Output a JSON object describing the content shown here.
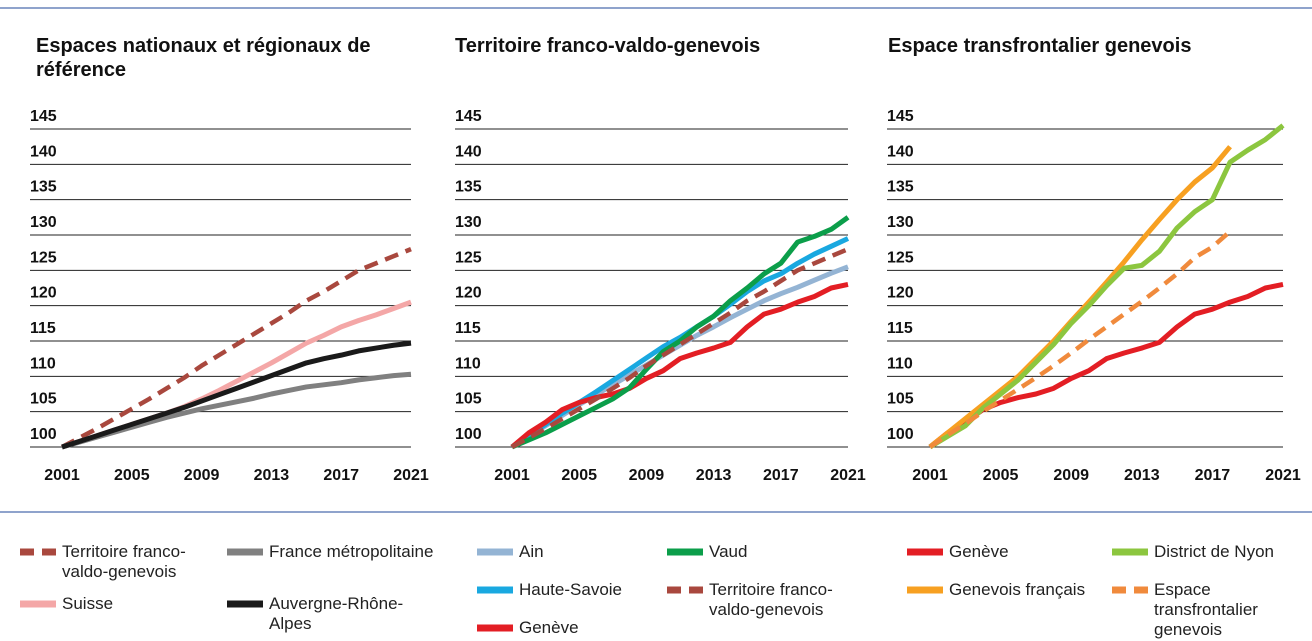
{
  "chart_data": [
    {
      "type": "line",
      "title": "Espaces nationaux et régionaux de référence",
      "x": [
        2001,
        2002,
        2003,
        2004,
        2005,
        2006,
        2007,
        2008,
        2009,
        2010,
        2011,
        2012,
        2013,
        2014,
        2015,
        2016,
        2017,
        2018,
        2019,
        2020,
        2021
      ],
      "xlim": [
        2001,
        2021
      ],
      "xticks": [
        2001,
        2005,
        2009,
        2013,
        2017,
        2021
      ],
      "ylim": [
        100,
        145
      ],
      "yticks": [
        100,
        105,
        110,
        115,
        120,
        125,
        130,
        135,
        140,
        145
      ],
      "grid": true,
      "series": [
        {
          "name": "Territoire franco-valdo-genevois",
          "color": "#a9483e",
          "dashed": true,
          "values": [
            100,
            101.3,
            102.6,
            104,
            105.4,
            106.8,
            108.3,
            109.8,
            111.5,
            113,
            114.5,
            116,
            117.5,
            119,
            120.7,
            122,
            123.5,
            125,
            126,
            127,
            128
          ]
        },
        {
          "name": "Suisse",
          "color": "#f4a7a7",
          "dashed": false,
          "values": [
            100,
            100.8,
            101.6,
            102.4,
            103.2,
            104,
            104.8,
            105.7,
            106.8,
            108,
            109.3,
            110.6,
            111.9,
            113.3,
            114.7,
            115.8,
            117,
            117.9,
            118.7,
            119.6,
            120.5
          ]
        },
        {
          "name": "France métropolitaine",
          "color": "#808080",
          "dashed": false,
          "values": [
            100,
            100.7,
            101.4,
            102.1,
            102.8,
            103.5,
            104.2,
            104.8,
            105.4,
            105.9,
            106.4,
            106.9,
            107.5,
            108,
            108.5,
            108.8,
            109.1,
            109.5,
            109.8,
            110.1,
            110.3
          ]
        },
        {
          "name": "Auvergne-Rhône-Alpes",
          "color": "#1a1a1a",
          "dashed": false,
          "values": [
            100,
            100.8,
            101.6,
            102.4,
            103.2,
            104,
            104.8,
            105.6,
            106.5,
            107.4,
            108.3,
            109.2,
            110.1,
            111,
            111.9,
            112.5,
            113,
            113.6,
            114,
            114.4,
            114.7
          ]
        }
      ]
    },
    {
      "type": "line",
      "title": "Territoire franco-valdo-genevois",
      "x": [
        2001,
        2002,
        2003,
        2004,
        2005,
        2006,
        2007,
        2008,
        2009,
        2010,
        2011,
        2012,
        2013,
        2014,
        2015,
        2016,
        2017,
        2018,
        2019,
        2020,
        2021
      ],
      "xlim": [
        2001,
        2021
      ],
      "xticks": [
        2001,
        2005,
        2009,
        2013,
        2017,
        2021
      ],
      "ylim": [
        100,
        145
      ],
      "yticks": [
        100,
        105,
        110,
        115,
        120,
        125,
        130,
        135,
        140,
        145
      ],
      "grid": true,
      "series": [
        {
          "name": "Ain",
          "color": "#94b4d4",
          "dashed": false,
          "values": [
            100,
            101.5,
            103,
            104.5,
            106,
            107.4,
            108.8,
            110.2,
            111.6,
            113,
            114.4,
            115.8,
            117,
            118.3,
            119.5,
            120.7,
            121.7,
            122.6,
            123.6,
            124.6,
            125.5
          ]
        },
        {
          "name": "Haute-Savoie",
          "color": "#19a8e0",
          "dashed": false,
          "values": [
            100,
            101.6,
            103.2,
            104.8,
            106.3,
            107.8,
            109.4,
            111,
            112.6,
            114.2,
            115.5,
            117,
            118.5,
            120.2,
            122,
            123.5,
            124.5,
            126,
            127.3,
            128.4,
            129.5
          ]
        },
        {
          "name": "Genève",
          "color": "#e31e24",
          "dashed": false,
          "values": [
            100,
            102,
            103.5,
            105.3,
            106.3,
            107,
            107.5,
            108.3,
            109.7,
            110.8,
            112.5,
            113.3,
            114,
            114.8,
            117,
            118.8,
            119.5,
            120.5,
            121.3,
            122.5,
            123
          ]
        },
        {
          "name": "Vaud",
          "color": "#0b9e4a",
          "dashed": false,
          "values": [
            100,
            101,
            102,
            103.2,
            104.4,
            105.6,
            106.8,
            108.4,
            111,
            113.5,
            115,
            117,
            118.5,
            120.7,
            122.5,
            124.5,
            126,
            129,
            129.8,
            130.8,
            132.5
          ]
        },
        {
          "name": "Territoire franco-valdo-genevois",
          "color": "#a9483e",
          "dashed": true,
          "values": [
            100,
            101.3,
            102.6,
            104,
            105.4,
            106.8,
            108.3,
            109.8,
            111.5,
            113,
            114.5,
            116,
            117.5,
            119,
            120.7,
            122,
            123.5,
            125,
            126,
            127,
            128
          ]
        }
      ]
    },
    {
      "type": "line",
      "title": "Espace transfrontalier genevois",
      "x": [
        2001,
        2002,
        2003,
        2004,
        2005,
        2006,
        2007,
        2008,
        2009,
        2010,
        2011,
        2012,
        2013,
        2014,
        2015,
        2016,
        2017,
        2018,
        2019,
        2020,
        2021
      ],
      "xlim": [
        2001,
        2021
      ],
      "xticks": [
        2001,
        2005,
        2009,
        2013,
        2017,
        2021
      ],
      "ylim": [
        100,
        145
      ],
      "yticks": [
        100,
        105,
        110,
        115,
        120,
        125,
        130,
        135,
        140,
        145
      ],
      "grid": true,
      "series": [
        {
          "name": "Genève",
          "color": "#e31e24",
          "dashed": false,
          "values": [
            100,
            102,
            103.5,
            105.3,
            106.3,
            107,
            107.5,
            108.3,
            109.7,
            110.8,
            112.5,
            113.3,
            114,
            114.8,
            117,
            118.8,
            119.5,
            120.5,
            121.3,
            122.5,
            123
          ]
        },
        {
          "name": "Genevois français",
          "color": "#f7a021",
          "dashed": false,
          "values": [
            100,
            102,
            104,
            106,
            108,
            110,
            112.5,
            115,
            117.8,
            120.5,
            123.3,
            126.2,
            129.3,
            132.2,
            135,
            137.5,
            139.5,
            142.5,
            null,
            null,
            null
          ]
        },
        {
          "name": "District de Nyon",
          "color": "#8cc63f",
          "dashed": false,
          "values": [
            100,
            101.5,
            103,
            105.5,
            107.5,
            109.5,
            112,
            114.5,
            117.5,
            120,
            122.8,
            125.3,
            125.7,
            127.7,
            131,
            133.3,
            135,
            140.3,
            142,
            143.5,
            145.5
          ]
        },
        {
          "name": "Espace transfrontalier genevois",
          "color": "#f08a3c",
          "dashed": true,
          "values": [
            100,
            101.7,
            103.3,
            105,
            106.6,
            108.2,
            109.8,
            111.5,
            113.3,
            115.2,
            117,
            118.8,
            120.6,
            122.5,
            124.5,
            126.8,
            128.3,
            130.5,
            null,
            null,
            null
          ]
        }
      ]
    }
  ]
}
